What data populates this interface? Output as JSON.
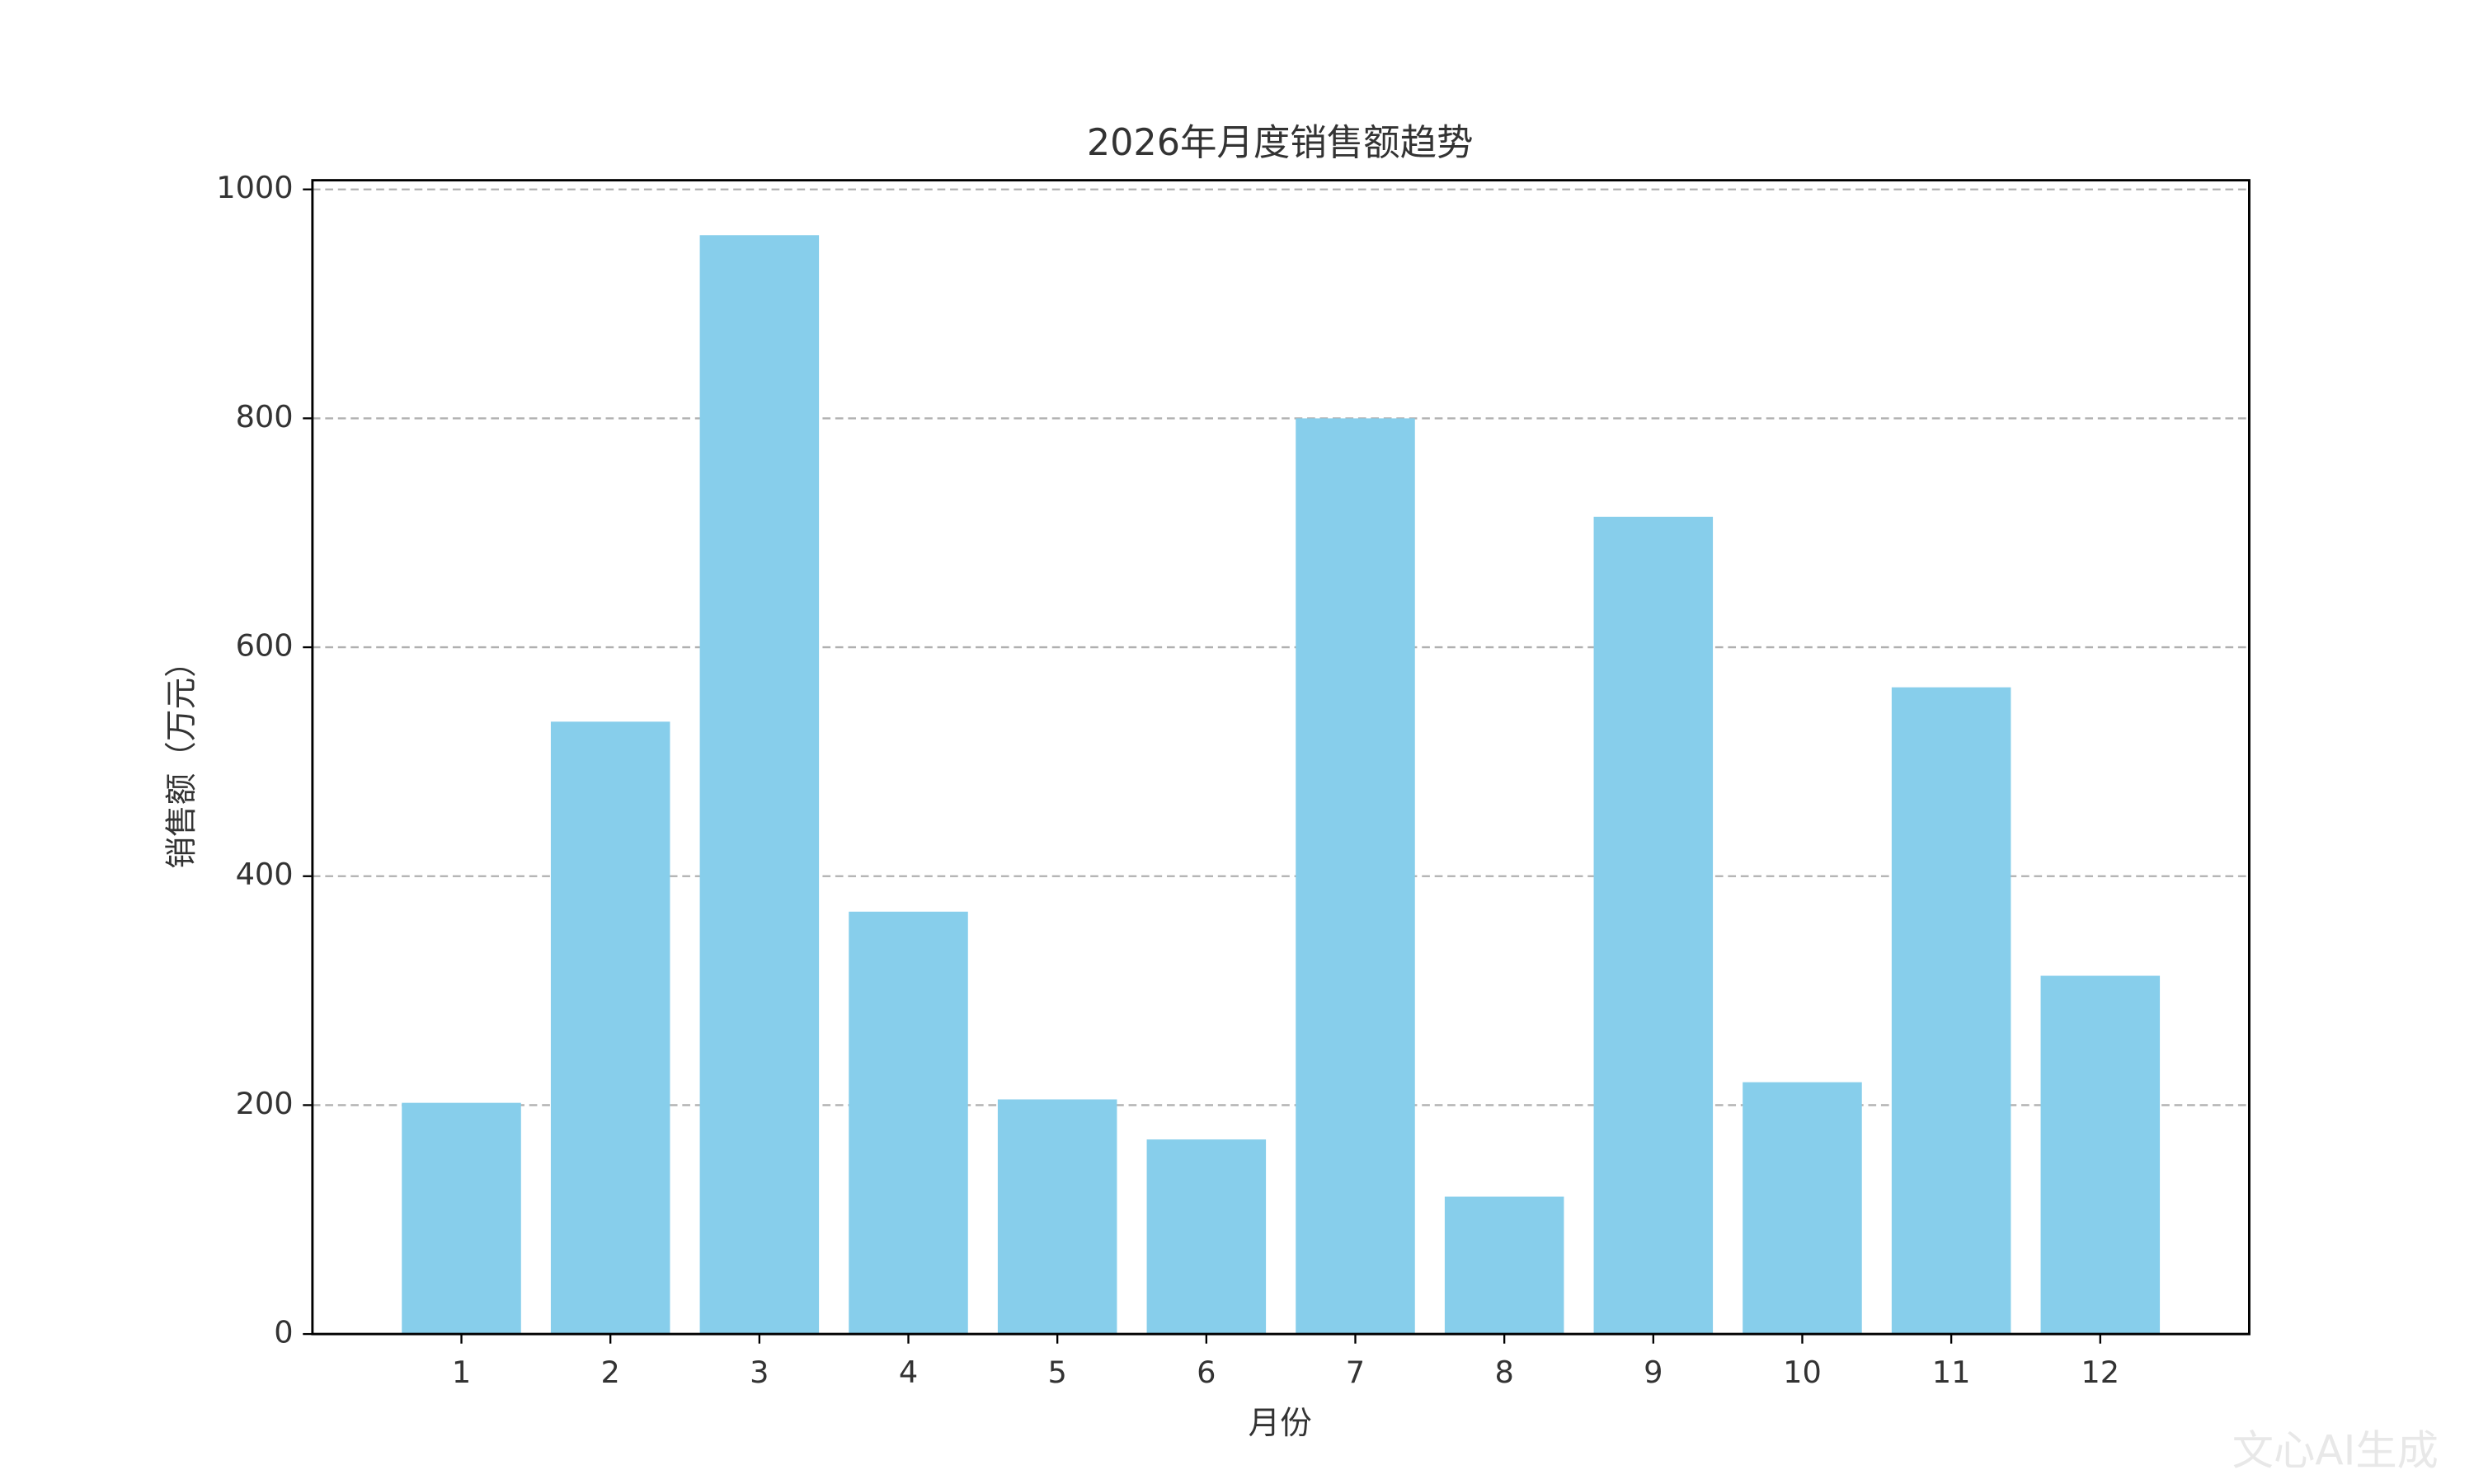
{
  "chart_data": {
    "type": "bar",
    "title": "2026年月度销售额趋势",
    "x_label": "月份",
    "y_label": "销售额（万元）",
    "categories": [
      "1",
      "2",
      "3",
      "4",
      "5",
      "6",
      "7",
      "8",
      "9",
      "10",
      "11",
      "12"
    ],
    "values": [
      202,
      535,
      960,
      369,
      205,
      170,
      800,
      120,
      714,
      220,
      565,
      313
    ],
    "color": "#87ceeb",
    "ylim": [
      0,
      1008
    ],
    "yticks": [
      0,
      200,
      400,
      600,
      800,
      1000
    ],
    "grid": true
  },
  "watermark": "文心AI生成"
}
